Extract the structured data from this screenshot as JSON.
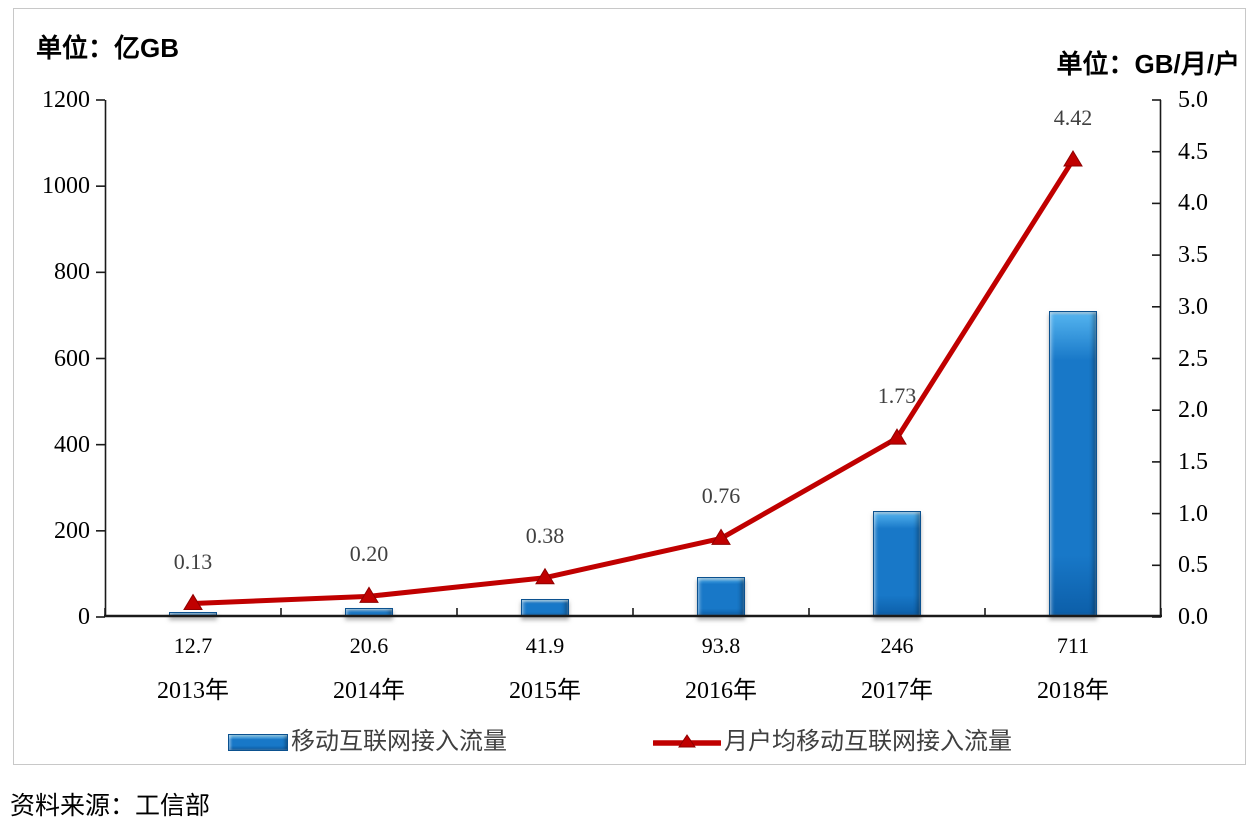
{
  "units": {
    "left": "单位：亿GB",
    "right": "单位：GB/月/户"
  },
  "source": "资料来源：工信部",
  "colors": {
    "bar": "#1878c8",
    "bar_dark": "#0c5ea8",
    "bar_outline": "#0b518f",
    "line": "#c00000",
    "line_edge": "#8f0000",
    "axis": "#1a1a1a",
    "point_label": "#404040",
    "border": "#c8c8c8"
  },
  "chart_data": {
    "type": "bar+line combo, dual axis",
    "categories": [
      "2013年",
      "2014年",
      "2015年",
      "2016年",
      "2017年",
      "2018年"
    ],
    "series": [
      {
        "name": "移动互联网接入流量",
        "type": "bar",
        "axis": "left",
        "values": [
          12.7,
          20.6,
          41.9,
          93.8,
          246,
          711
        ],
        "labels": [
          "12.7",
          "20.6",
          "41.9",
          "93.8",
          "246",
          "711"
        ]
      },
      {
        "name": "月户均移动互联网接入流量",
        "type": "line",
        "axis": "right",
        "values": [
          0.13,
          0.2,
          0.38,
          0.76,
          1.73,
          4.42
        ],
        "labels": [
          "0.13",
          "0.20",
          "0.38",
          "0.76",
          "1.73",
          "4.42"
        ]
      }
    ],
    "left_axis": {
      "min": 0,
      "max": 1200,
      "step": 200,
      "ticks": [
        "1200",
        "1000",
        "800",
        "600",
        "400",
        "200",
        "0"
      ]
    },
    "right_axis": {
      "min": 0.0,
      "max": 5.0,
      "step": 0.5,
      "ticks": [
        "5.0",
        "4.5",
        "4.0",
        "3.5",
        "3.0",
        "2.5",
        "2.0",
        "1.5",
        "1.0",
        "0.5",
        "0.0"
      ]
    },
    "grid": "off",
    "legend_position": "bottom"
  }
}
